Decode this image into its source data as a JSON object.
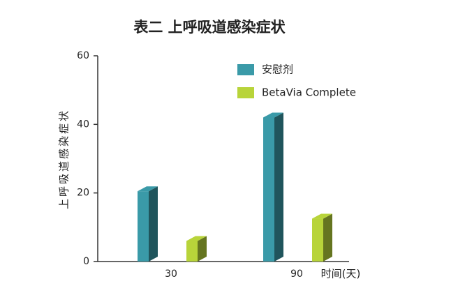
{
  "chart_data": {
    "type": "bar3d",
    "title": "表二 上呼吸道感染症状",
    "y_label": "上呼吸道感染症状",
    "x_label": "时间(天)",
    "categories": [
      "30",
      "90"
    ],
    "series": [
      {
        "name": "安慰剂",
        "color": "#3a9aa8",
        "values": [
          20.5,
          42
        ]
      },
      {
        "name": "BetaVia Complete",
        "color": "#b8d43a",
        "values": [
          6,
          12.5
        ]
      }
    ],
    "ylim": [
      0,
      60
    ],
    "yticks": [
      0,
      20,
      40,
      60
    ],
    "grid": false
  }
}
